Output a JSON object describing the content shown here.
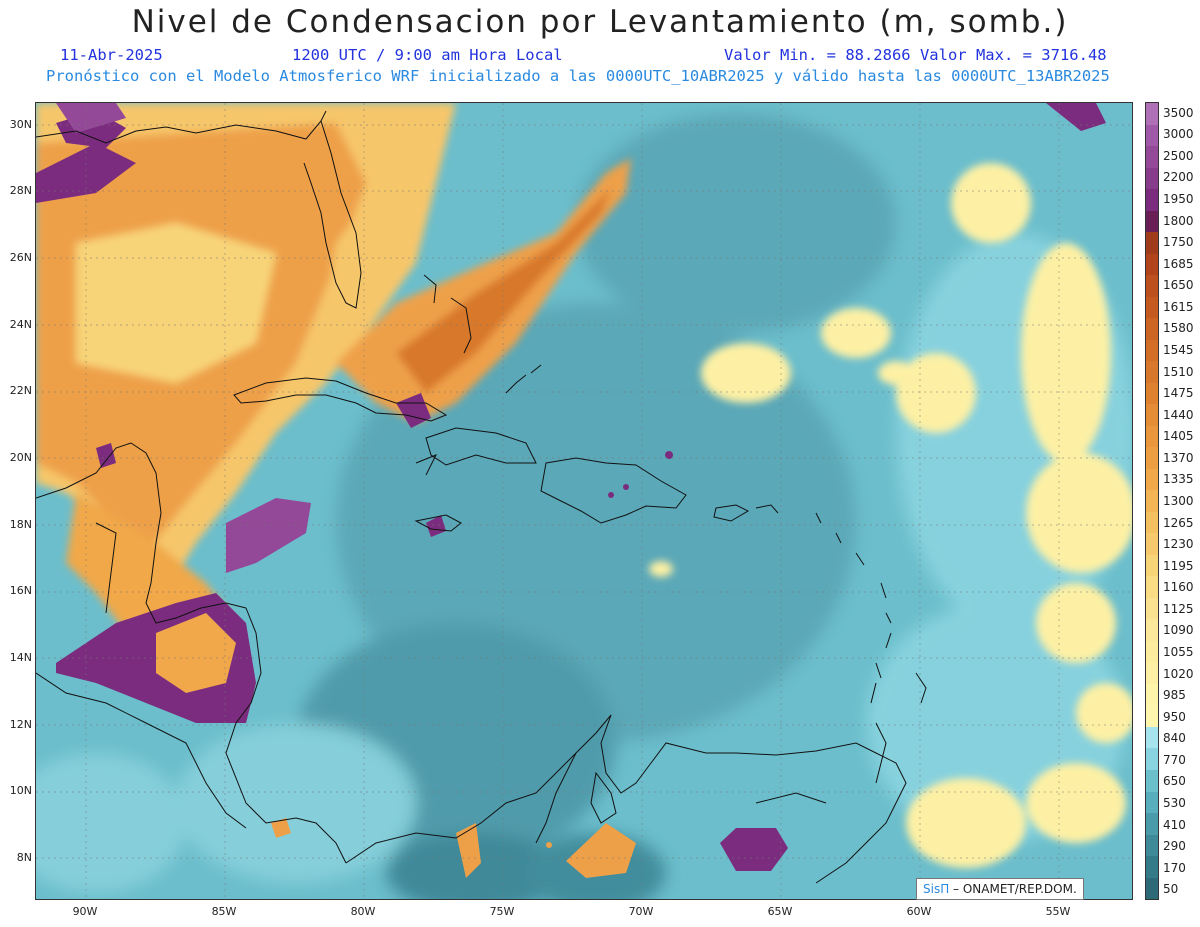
{
  "header": {
    "title": "Nivel de Condensacion por Levantamiento (m, somb.)",
    "date": "11-Abr-2025",
    "time": "1200 UTC / 9:00 am Hora Local",
    "min_max": "Valor Min. = 88.2866  Valor Max. = 3716.48",
    "forecast_note": "Pronóstico con el Modelo Atmosferico WRF inicializado a las 0000UTC_10ABR2025 y válido hasta las  0000UTC_13ABR2025"
  },
  "map": {
    "lat_labels": [
      "30N",
      "28N",
      "26N",
      "24N",
      "22N",
      "20N",
      "18N",
      "16N",
      "14N",
      "12N",
      "10N",
      "8N"
    ],
    "lon_labels": [
      "90W",
      "85W",
      "80W",
      "75W",
      "70W",
      "65W",
      "60W",
      "55W"
    ],
    "credit_logo": "SisΠ",
    "credit_text": " – ONAMET/REP.DOM."
  },
  "colorbar": {
    "labels": [
      "3500",
      "3000",
      "2500",
      "2200",
      "1950",
      "1800",
      "1750",
      "1685",
      "1650",
      "1615",
      "1580",
      "1545",
      "1510",
      "1475",
      "1440",
      "1405",
      "1370",
      "1335",
      "1300",
      "1265",
      "1230",
      "1195",
      "1160",
      "1125",
      "1090",
      "1055",
      "1020",
      "985",
      "950",
      "840",
      "770",
      "650",
      "530",
      "410",
      "290",
      "170",
      "50"
    ],
    "colors": [
      "#b070b8",
      "#a058a8",
      "#944898",
      "#883c8c",
      "#7c2c7e",
      "#6a1e56",
      "#a03c1c",
      "#b2441c",
      "#bc501e",
      "#c45a20",
      "#cc6424",
      "#d26e28",
      "#d8782c",
      "#de8230",
      "#e48c36",
      "#ea963c",
      "#ee9e42",
      "#f0a84a",
      "#f2b454",
      "#f4c060",
      "#f6ca6c",
      "#f8d478",
      "#fadc84",
      "#fae290",
      "#fce89a",
      "#fcec9e",
      "#fdf0a4",
      "#fef4aa",
      "#fef6ae",
      "#a6e4ee",
      "#88d4e0",
      "#6cc0cc",
      "#58aebc",
      "#4a9caa",
      "#3e8a98",
      "#347a88",
      "#2c6a78"
    ]
  }
}
